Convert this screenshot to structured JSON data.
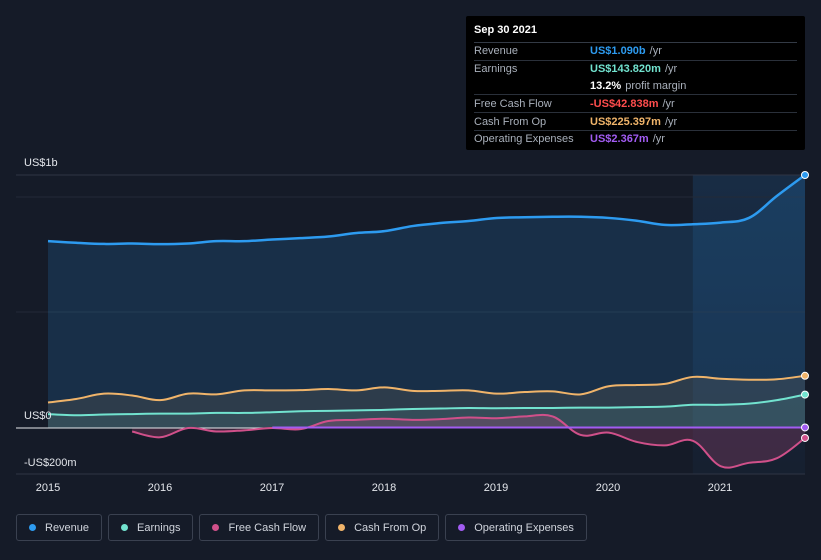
{
  "tooltip": {
    "date": "Sep 30 2021",
    "rows": [
      {
        "label": "Revenue",
        "value": "US$1.090b",
        "unit": "/yr",
        "color": "#2d9bf0"
      },
      {
        "label": "Earnings",
        "value": "US$143.820m",
        "unit": "/yr",
        "color": "#72e3cf"
      },
      {
        "label": "",
        "value": "13.2%",
        "unit": "profit margin",
        "color": "#ffffff"
      },
      {
        "label": "Free Cash Flow",
        "value": "-US$42.838m",
        "unit": "/yr",
        "color": "#ff4d4d"
      },
      {
        "label": "Cash From Op",
        "value": "US$225.397m",
        "unit": "/yr",
        "color": "#f0b46a"
      },
      {
        "label": "Operating Expenses",
        "value": "US$2.367m",
        "unit": "/yr",
        "color": "#a25cf2"
      }
    ]
  },
  "legend": [
    {
      "label": "Revenue",
      "color": "#2d9bf0"
    },
    {
      "label": "Earnings",
      "color": "#72e3cf"
    },
    {
      "label": "Free Cash Flow",
      "color": "#d0508a"
    },
    {
      "label": "Cash From Op",
      "color": "#f0b46a"
    },
    {
      "label": "Operating Expenses",
      "color": "#a25cf2"
    }
  ],
  "chart_data": {
    "type": "area",
    "title": "",
    "ylabel": "",
    "ytick_labels": [
      "US$1b",
      "US$0",
      "-US$200m"
    ],
    "y_ticks_value": [
      1100,
      0,
      -200
    ],
    "ylim": [
      -200,
      1100
    ],
    "xlim": [
      2015.0,
      2021.75
    ],
    "xtick_labels": [
      "2015",
      "2016",
      "2017",
      "2018",
      "2019",
      "2020",
      "2021"
    ],
    "highlight_from": 2020.75,
    "series": [
      {
        "name": "Revenue",
        "color": "#2d9bf0",
        "fill": true,
        "x": [
          2015.0,
          2015.25,
          2015.5,
          2015.75,
          2016.0,
          2016.25,
          2016.5,
          2016.75,
          2017.0,
          2017.25,
          2017.5,
          2017.75,
          2018.0,
          2018.25,
          2018.5,
          2018.75,
          2019.0,
          2019.25,
          2019.5,
          2019.75,
          2020.0,
          2020.25,
          2020.5,
          2020.75,
          2021.0,
          2021.25,
          2021.5,
          2021.75
        ],
        "values": [
          805,
          798,
          793,
          795,
          792,
          795,
          805,
          805,
          812,
          818,
          825,
          840,
          848,
          870,
          883,
          892,
          905,
          908,
          910,
          910,
          905,
          893,
          875,
          878,
          885,
          905,
          1000,
          1090
        ]
      },
      {
        "name": "Cash From Op",
        "color": "#f0b46a",
        "fill": true,
        "x": [
          2015.0,
          2015.25,
          2015.5,
          2015.75,
          2016.0,
          2016.25,
          2016.5,
          2016.75,
          2017.0,
          2017.25,
          2017.5,
          2017.75,
          2018.0,
          2018.25,
          2018.5,
          2018.75,
          2019.0,
          2019.25,
          2019.5,
          2019.75,
          2020.0,
          2020.25,
          2020.5,
          2020.75,
          2021.0,
          2021.25,
          2021.5,
          2021.75
        ],
        "values": [
          110,
          125,
          148,
          140,
          120,
          148,
          145,
          162,
          162,
          163,
          168,
          162,
          175,
          160,
          160,
          162,
          148,
          155,
          158,
          145,
          180,
          185,
          190,
          220,
          212,
          208,
          210,
          225
        ]
      },
      {
        "name": "Earnings",
        "color": "#72e3cf",
        "fill": true,
        "x": [
          2015.0,
          2015.25,
          2015.5,
          2015.75,
          2016.0,
          2016.25,
          2016.5,
          2016.75,
          2017.0,
          2017.25,
          2017.5,
          2017.75,
          2018.0,
          2018.25,
          2018.5,
          2018.75,
          2019.0,
          2019.25,
          2019.5,
          2019.75,
          2020.0,
          2020.25,
          2020.5,
          2020.75,
          2021.0,
          2021.25,
          2021.5,
          2021.75
        ],
        "values": [
          60,
          55,
          58,
          60,
          62,
          62,
          65,
          65,
          68,
          72,
          74,
          76,
          78,
          82,
          84,
          86,
          85,
          86,
          86,
          88,
          88,
          90,
          92,
          100,
          100,
          105,
          120,
          144
        ]
      },
      {
        "name": "Free Cash Flow",
        "color": "#d0508a",
        "fill": true,
        "x": [
          2015.75,
          2016.0,
          2016.25,
          2016.5,
          2016.75,
          2017.0,
          2017.25,
          2017.5,
          2017.75,
          2018.0,
          2018.25,
          2018.5,
          2018.75,
          2019.0,
          2019.25,
          2019.5,
          2019.75,
          2020.0,
          2020.25,
          2020.5,
          2020.75,
          2021.0,
          2021.25,
          2021.5,
          2021.75
        ],
        "values": [
          -15,
          -40,
          0,
          -15,
          -10,
          0,
          -5,
          30,
          35,
          40,
          35,
          38,
          45,
          42,
          50,
          50,
          -30,
          -20,
          -60,
          -75,
          -55,
          -165,
          -150,
          -130,
          -43
        ]
      },
      {
        "name": "Operating Expenses",
        "color": "#a25cf2",
        "fill": false,
        "x": [
          2017.0,
          2017.5,
          2018.0,
          2018.5,
          2019.0,
          2019.5,
          2020.0,
          2020.5,
          2021.0,
          2021.5,
          2021.75
        ],
        "values": [
          2,
          2,
          2,
          2,
          2,
          2,
          2,
          2,
          2,
          2,
          2.4
        ]
      }
    ]
  }
}
